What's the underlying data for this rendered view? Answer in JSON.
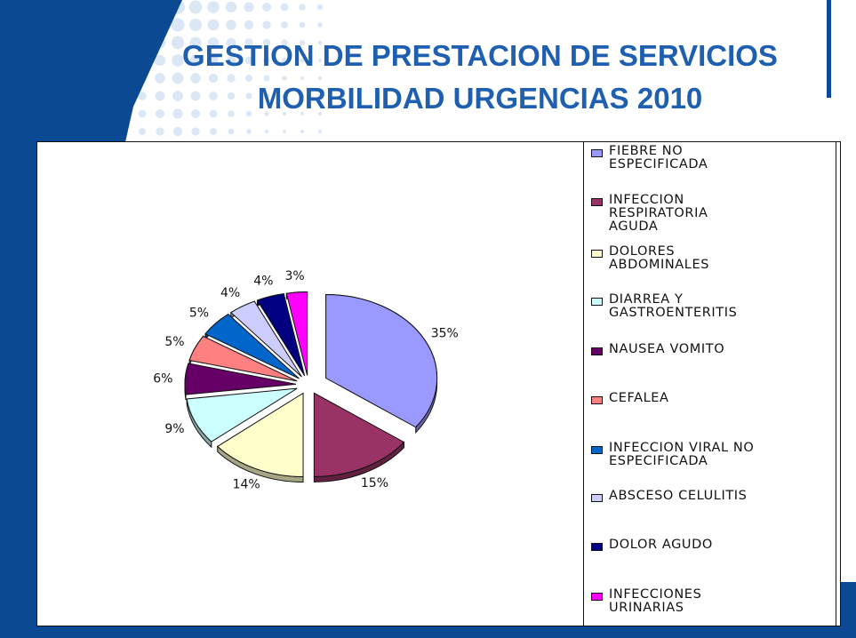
{
  "slide": {
    "title_line1": "GESTION DE PRESTACION DE SERVICIOS",
    "title_line2": "MORBILIDAD URGENCIAS 2010"
  },
  "theme": {
    "title_color": "#1f5fb0",
    "frame_blue": "#0b4a93",
    "dot_color": "#dbe7f5"
  },
  "chart_data": {
    "type": "pie",
    "exploded": true,
    "legend_position": "right",
    "labels": [
      "FIEBRE NO\nESPECIFICADA",
      "INFECCION\nRESPIRATORIA\nAGUDA",
      "DOLORES\nABDOMINALES",
      "DIARREA Y\nGASTROENTERITIS",
      "NAUSEA VOMITO",
      "CEFALEA",
      "INFECCION VIRAL NO\nESPECIFICADA",
      "ABSCESO CELULITIS",
      "DOLOR AGUDO",
      "INFECCIONES\nURINARIAS"
    ],
    "values": [
      35,
      15,
      14,
      9,
      6,
      5,
      5,
      4,
      4,
      3
    ],
    "value_labels": [
      "35%",
      "15%",
      "14%",
      "9%",
      "6%",
      "5%",
      "5%",
      "4%",
      "4%",
      "3%"
    ],
    "colors": [
      "#9999ff",
      "#993366",
      "#ffffcc",
      "#ccffff",
      "#660066",
      "#ff8080",
      "#0066cc",
      "#ccccff",
      "#000080",
      "#ff00ff"
    ]
  }
}
